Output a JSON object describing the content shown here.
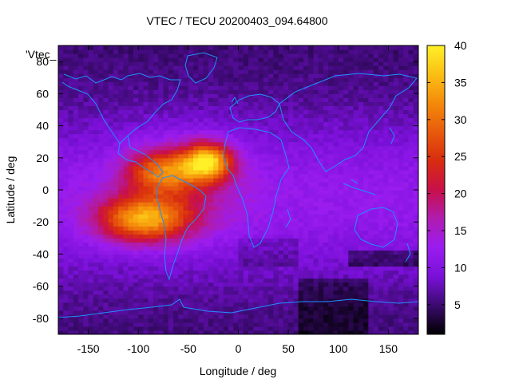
{
  "chart_data": {
    "type": "heatmap",
    "title": "VTEC / TECU 20200403_094.64800",
    "xlabel": "Longitude / deg",
    "ylabel": "Latitude / deg",
    "series_label": "'Vtec_",
    "xlim": [
      -180,
      180
    ],
    "ylim": [
      -90,
      90
    ],
    "x_ticks": [
      -150,
      -100,
      -50,
      0,
      50,
      100,
      150
    ],
    "y_ticks": [
      -80,
      -60,
      -40,
      -20,
      0,
      20,
      40,
      60,
      80
    ],
    "colorbar": {
      "range": [
        1,
        40
      ],
      "ticks": [
        5,
        10,
        15,
        20,
        25,
        30,
        35,
        40
      ],
      "palette": [
        "#000000",
        "#3a0a6e",
        "#7a10d8",
        "#9a1cf0",
        "#b01cb0",
        "#c8104a",
        "#d82c10",
        "#e85a0c",
        "#f48a0a",
        "#fbbf14",
        "#fff028"
      ]
    },
    "coastline_color": "#1e90ff",
    "features": {
      "main_peak": {
        "lon": -30,
        "lat": 18,
        "vtec": 38
      },
      "crest_south": {
        "lon": -95,
        "lat": -18,
        "vtec": 30
      },
      "crest_north": {
        "lon": -75,
        "lat": 12,
        "vtec": 26
      },
      "background_min": 5,
      "background_max": 12
    }
  }
}
